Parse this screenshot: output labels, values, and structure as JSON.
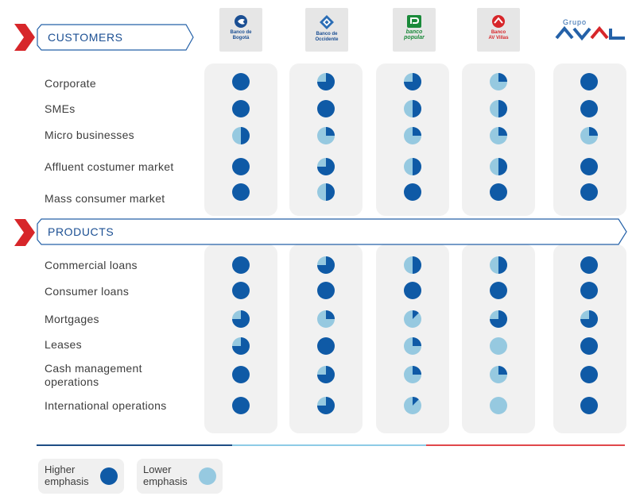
{
  "colors": {
    "high": "#0f5aa6",
    "low": "#96c9e0",
    "accent_red": "#d7262a",
    "banner_blue": "#1b4f93",
    "column_bg": "#f1f1f1"
  },
  "sections": {
    "customers": {
      "title": "CUSTOMERS"
    },
    "products": {
      "title": "PRODUCTS"
    }
  },
  "banks": [
    {
      "name": "Banco de Bogotá",
      "lines": [
        "Banco de",
        "Bogotá"
      ],
      "icon": "bogota-logo-icon",
      "color": "#1b4f93"
    },
    {
      "name": "Banco de Occidente",
      "lines": [
        "Banco de",
        "Occidente"
      ],
      "icon": "occidente-logo-icon",
      "color": "#1b4f93"
    },
    {
      "name": "banco popular",
      "lines": [
        "banco",
        "popular"
      ],
      "icon": "popular-logo-icon",
      "color": "#1a8a3a"
    },
    {
      "name": "Banco AV Villas",
      "lines": [
        "Banco",
        "AV Villas"
      ],
      "icon": "avvillas-logo-icon",
      "color": "#d7262a"
    },
    {
      "name": "Grupo AVAL",
      "lines": [
        "Grupo",
        "AVAL"
      ],
      "icon": "aval-logo-icon",
      "color": "#2461a8"
    }
  ],
  "customer_rows": [
    {
      "label": "Corporate",
      "emphasis": [
        1.0,
        0.75,
        0.75,
        0.25,
        1.0
      ]
    },
    {
      "label": "SMEs",
      "emphasis": [
        1.0,
        1.0,
        0.5,
        0.5,
        1.0
      ]
    },
    {
      "label": "Micro businesses",
      "emphasis": [
        0.5,
        0.25,
        0.25,
        0.25,
        0.25
      ]
    },
    {
      "label": "Affluent costumer market",
      "emphasis": [
        1.0,
        0.75,
        0.5,
        0.5,
        1.0
      ]
    },
    {
      "label": "Mass consumer market",
      "emphasis": [
        1.0,
        0.5,
        1.0,
        1.0,
        1.0
      ]
    }
  ],
  "product_rows": [
    {
      "label": "Commercial loans",
      "emphasis": [
        1.0,
        0.75,
        0.5,
        0.5,
        1.0
      ]
    },
    {
      "label": "Consumer loans",
      "emphasis": [
        1.0,
        1.0,
        1.0,
        1.0,
        1.0
      ]
    },
    {
      "label": "Mortgages",
      "emphasis": [
        0.75,
        0.25,
        0.125,
        0.75,
        0.75
      ]
    },
    {
      "label": "Leases",
      "emphasis": [
        0.75,
        1.0,
        0.25,
        0.0,
        1.0
      ]
    },
    {
      "label": "Cash management operations",
      "lines": [
        "Cash management",
        "operations"
      ],
      "emphasis": [
        1.0,
        0.75,
        0.25,
        0.25,
        1.0
      ]
    },
    {
      "label": "International operations",
      "emphasis": [
        1.0,
        0.75,
        0.125,
        0.0,
        1.0
      ]
    }
  ],
  "legend": {
    "higher": {
      "lines": [
        "Higher",
        "emphasis"
      ]
    },
    "lower": {
      "lines": [
        "Lower",
        "emphasis"
      ]
    }
  }
}
